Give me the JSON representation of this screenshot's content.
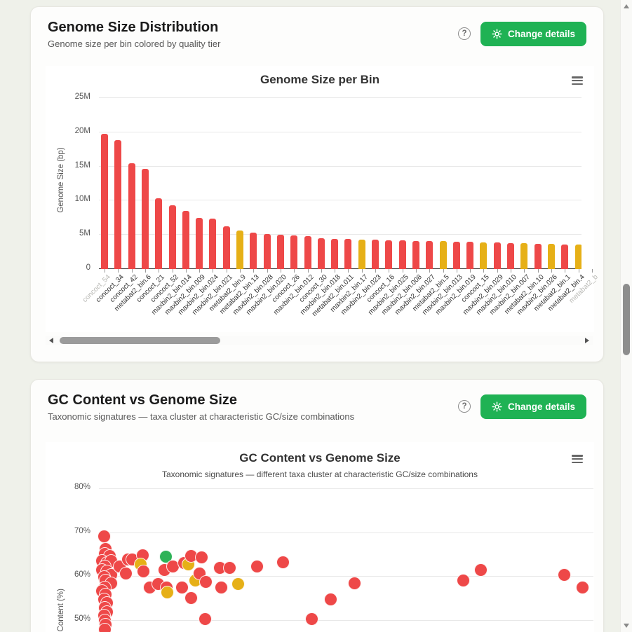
{
  "page": {
    "background": "#eff1ea"
  },
  "colors": {
    "accent_green": "#1fb254",
    "tier_red": "#ee4848",
    "tier_yellow": "#e6b017",
    "tier_green": "#2eb257",
    "grid": "#e8e8e8",
    "muted_label": "#b8b8b4"
  },
  "cards": [
    {
      "title": "Genome Size Distribution",
      "subtitle": "Genome size per bin colored by quality tier",
      "help_label": "?",
      "button_label": "Change details"
    },
    {
      "title": "GC Content vs Genome Size",
      "subtitle": "Taxonomic signatures — taxa cluster at characteristic GC/size combinations",
      "help_label": "?",
      "button_label": "Change details"
    }
  ],
  "chart_data": [
    {
      "type": "bar",
      "title": "Genome Size per Bin",
      "xlabel": "",
      "ylabel": "Genome Size (bp)",
      "y_ticks": [
        "0",
        "5M",
        "10M",
        "15M",
        "20M",
        "25M"
      ],
      "ylim": [
        0,
        25900000
      ],
      "grid": true,
      "legend": false,
      "scrollable_x": true,
      "bins": [
        {
          "label": "concoct_54",
          "value_bp": 19800000,
          "tier": "red",
          "muted": true
        },
        {
          "label": "concoct_34",
          "value_bp": 18900000,
          "tier": "red"
        },
        {
          "label": "concoct_42",
          "value_bp": 15500000,
          "tier": "red"
        },
        {
          "label": "metabat2_bin.6",
          "value_bp": 14700000,
          "tier": "red"
        },
        {
          "label": "concoct_21",
          "value_bp": 10300000,
          "tier": "red"
        },
        {
          "label": "concoct_52",
          "value_bp": 9300000,
          "tier": "red"
        },
        {
          "label": "maxbin2_bin.014",
          "value_bp": 8500000,
          "tier": "red"
        },
        {
          "label": "maxbin2_bin.009",
          "value_bp": 7500000,
          "tier": "red"
        },
        {
          "label": "maxbin2_bin.024",
          "value_bp": 7400000,
          "tier": "red"
        },
        {
          "label": "maxbin2_bin.021",
          "value_bp": 6300000,
          "tier": "red"
        },
        {
          "label": "metabat2_bin.9",
          "value_bp": 5600000,
          "tier": "yellow"
        },
        {
          "label": "metabat2_bin.13",
          "value_bp": 5300000,
          "tier": "red"
        },
        {
          "label": "maxbin2_bin.028",
          "value_bp": 5150000,
          "tier": "red"
        },
        {
          "label": "maxbin2_bin.020",
          "value_bp": 5000000,
          "tier": "red"
        },
        {
          "label": "concoct_26",
          "value_bp": 4950000,
          "tier": "red"
        },
        {
          "label": "maxbin2_bin.012",
          "value_bp": 4800000,
          "tier": "red"
        },
        {
          "label": "concoct_30",
          "value_bp": 4500000,
          "tier": "red"
        },
        {
          "label": "maxbin2_bin.018",
          "value_bp": 4450000,
          "tier": "red"
        },
        {
          "label": "metabat2_bin.011",
          "value_bp": 4400000,
          "tier": "red"
        },
        {
          "label": "maxbin2_bin.17",
          "value_bp": 4350000,
          "tier": "yellow"
        },
        {
          "label": "maxbin2_bin.023",
          "value_bp": 4300000,
          "tier": "red"
        },
        {
          "label": "concoct_16",
          "value_bp": 4250000,
          "tier": "red"
        },
        {
          "label": "maxbin2_bin.025",
          "value_bp": 4200000,
          "tier": "red"
        },
        {
          "label": "maxbin2_bin.008",
          "value_bp": 4150000,
          "tier": "red"
        },
        {
          "label": "maxbin2_bin.027",
          "value_bp": 4100000,
          "tier": "red"
        },
        {
          "label": "metabat2_bin.5",
          "value_bp": 4050000,
          "tier": "yellow"
        },
        {
          "label": "maxbin2_bin.013",
          "value_bp": 4000000,
          "tier": "red"
        },
        {
          "label": "maxbin2_bin.019",
          "value_bp": 3950000,
          "tier": "red"
        },
        {
          "label": "concoct_15",
          "value_bp": 3900000,
          "tier": "yellow"
        },
        {
          "label": "maxbin2_bin.029",
          "value_bp": 3850000,
          "tier": "red"
        },
        {
          "label": "maxbin2_bin.010",
          "value_bp": 3800000,
          "tier": "red"
        },
        {
          "label": "maxbin2_bin.007",
          "value_bp": 3750000,
          "tier": "yellow"
        },
        {
          "label": "metabat2_bin.10",
          "value_bp": 3700000,
          "tier": "red"
        },
        {
          "label": "maxbin2_bin.026",
          "value_bp": 3650000,
          "tier": "yellow"
        },
        {
          "label": "metabat2_bin.1",
          "value_bp": 3600000,
          "tier": "red"
        },
        {
          "label": "metabat2_bin.4",
          "value_bp": 3550000,
          "tier": "yellow"
        },
        {
          "label": "metabat2_b",
          "value_bp": 3500000,
          "tier": "red",
          "muted": true
        }
      ]
    },
    {
      "type": "scatter",
      "title": "GC Content vs Genome Size",
      "subtitle": "Taxonomic signatures — different taxa cluster at characteristic GC/size combinations",
      "xlabel": "",
      "ylabel": "GC Content (%)",
      "y_ticks": [
        "80%",
        "70%",
        "60%",
        "50%"
      ],
      "ylim_visible": [
        47,
        82
      ],
      "x_ticks_visible": false,
      "xlim_mbp_est": [
        0,
        20
      ],
      "grid": true,
      "points": [
        {
          "x_mbp": 0.2,
          "gc_pct": 69.0,
          "tier": "red"
        },
        {
          "x_mbp": 0.28,
          "gc_pct": 66.2,
          "tier": "red"
        },
        {
          "x_mbp": 0.23,
          "gc_pct": 65.0,
          "tier": "red"
        },
        {
          "x_mbp": 0.43,
          "gc_pct": 64.5,
          "tier": "red"
        },
        {
          "x_mbp": 0.14,
          "gc_pct": 63.4,
          "tier": "red"
        },
        {
          "x_mbp": 0.34,
          "gc_pct": 63.0,
          "tier": "red"
        },
        {
          "x_mbp": 0.51,
          "gc_pct": 63.5,
          "tier": "red"
        },
        {
          "x_mbp": 0.23,
          "gc_pct": 62.1,
          "tier": "red"
        },
        {
          "x_mbp": 0.14,
          "gc_pct": 61.4,
          "tier": "red"
        },
        {
          "x_mbp": 0.34,
          "gc_pct": 61.0,
          "tier": "red"
        },
        {
          "x_mbp": 0.51,
          "gc_pct": 60.2,
          "tier": "red"
        },
        {
          "x_mbp": 0.2,
          "gc_pct": 59.8,
          "tier": "red"
        },
        {
          "x_mbp": 0.28,
          "gc_pct": 59.0,
          "tier": "red"
        },
        {
          "x_mbp": 0.49,
          "gc_pct": 58.4,
          "tier": "red"
        },
        {
          "x_mbp": 0.23,
          "gc_pct": 57.4,
          "tier": "red"
        },
        {
          "x_mbp": 0.14,
          "gc_pct": 56.5,
          "tier": "red"
        },
        {
          "x_mbp": 0.28,
          "gc_pct": 55.7,
          "tier": "red"
        },
        {
          "x_mbp": 0.2,
          "gc_pct": 54.6,
          "tier": "red"
        },
        {
          "x_mbp": 0.34,
          "gc_pct": 53.8,
          "tier": "red"
        },
        {
          "x_mbp": 0.23,
          "gc_pct": 52.8,
          "tier": "red"
        },
        {
          "x_mbp": 0.34,
          "gc_pct": 51.8,
          "tier": "red"
        },
        {
          "x_mbp": 0.2,
          "gc_pct": 50.9,
          "tier": "red"
        },
        {
          "x_mbp": 0.23,
          "gc_pct": 49.9,
          "tier": "red"
        },
        {
          "x_mbp": 0.28,
          "gc_pct": 48.9,
          "tier": "red"
        },
        {
          "x_mbp": 0.23,
          "gc_pct": 47.8,
          "tier": "red"
        },
        {
          "x_mbp": 0.85,
          "gc_pct": 62.2,
          "tier": "red"
        },
        {
          "x_mbp": 1.08,
          "gc_pct": 60.5,
          "tier": "red"
        },
        {
          "x_mbp": 1.19,
          "gc_pct": 63.7,
          "tier": "red"
        },
        {
          "x_mbp": 1.36,
          "gc_pct": 63.8,
          "tier": "red"
        },
        {
          "x_mbp": 1.76,
          "gc_pct": 64.7,
          "tier": "red"
        },
        {
          "x_mbp": 1.7,
          "gc_pct": 62.6,
          "tier": "yellow"
        },
        {
          "x_mbp": 1.8,
          "gc_pct": 61.0,
          "tier": "red"
        },
        {
          "x_mbp": 2.07,
          "gc_pct": 57.3,
          "tier": "red"
        },
        {
          "x_mbp": 2.41,
          "gc_pct": 58.1,
          "tier": "red"
        },
        {
          "x_mbp": 2.64,
          "gc_pct": 61.4,
          "tier": "red"
        },
        {
          "x_mbp": 2.7,
          "gc_pct": 64.4,
          "tier": "green"
        },
        {
          "x_mbp": 2.75,
          "gc_pct": 57.4,
          "tier": "red"
        },
        {
          "x_mbp": 2.78,
          "gc_pct": 56.2,
          "tier": "yellow"
        },
        {
          "x_mbp": 2.98,
          "gc_pct": 62.1,
          "tier": "red"
        },
        {
          "x_mbp": 3.35,
          "gc_pct": 57.3,
          "tier": "red"
        },
        {
          "x_mbp": 3.46,
          "gc_pct": 63.0,
          "tier": "red"
        },
        {
          "x_mbp": 3.63,
          "gc_pct": 62.6,
          "tier": "yellow"
        },
        {
          "x_mbp": 3.72,
          "gc_pct": 54.9,
          "tier": "red"
        },
        {
          "x_mbp": 3.74,
          "gc_pct": 64.5,
          "tier": "red"
        },
        {
          "x_mbp": 3.89,
          "gc_pct": 59.0,
          "tier": "yellow"
        },
        {
          "x_mbp": 4.06,
          "gc_pct": 60.6,
          "tier": "red"
        },
        {
          "x_mbp": 4.17,
          "gc_pct": 64.2,
          "tier": "red"
        },
        {
          "x_mbp": 4.31,
          "gc_pct": 50.1,
          "tier": "red"
        },
        {
          "x_mbp": 4.34,
          "gc_pct": 58.6,
          "tier": "red"
        },
        {
          "x_mbp": 4.88,
          "gc_pct": 61.8,
          "tier": "red"
        },
        {
          "x_mbp": 4.96,
          "gc_pct": 57.3,
          "tier": "red"
        },
        {
          "x_mbp": 5.3,
          "gc_pct": 61.8,
          "tier": "red"
        },
        {
          "x_mbp": 5.62,
          "gc_pct": 58.1,
          "tier": "yellow"
        },
        {
          "x_mbp": 6.41,
          "gc_pct": 62.1,
          "tier": "red"
        },
        {
          "x_mbp": 7.46,
          "gc_pct": 63.2,
          "tier": "red"
        },
        {
          "x_mbp": 8.6,
          "gc_pct": 50.2,
          "tier": "red"
        },
        {
          "x_mbp": 9.39,
          "gc_pct": 54.6,
          "tier": "red"
        },
        {
          "x_mbp": 10.33,
          "gc_pct": 58.4,
          "tier": "red"
        },
        {
          "x_mbp": 14.75,
          "gc_pct": 59.0,
          "tier": "red"
        },
        {
          "x_mbp": 15.46,
          "gc_pct": 61.3,
          "tier": "red"
        },
        {
          "x_mbp": 18.81,
          "gc_pct": 60.3,
          "tier": "red"
        },
        {
          "x_mbp": 19.57,
          "gc_pct": 57.4,
          "tier": "red"
        }
      ]
    }
  ]
}
